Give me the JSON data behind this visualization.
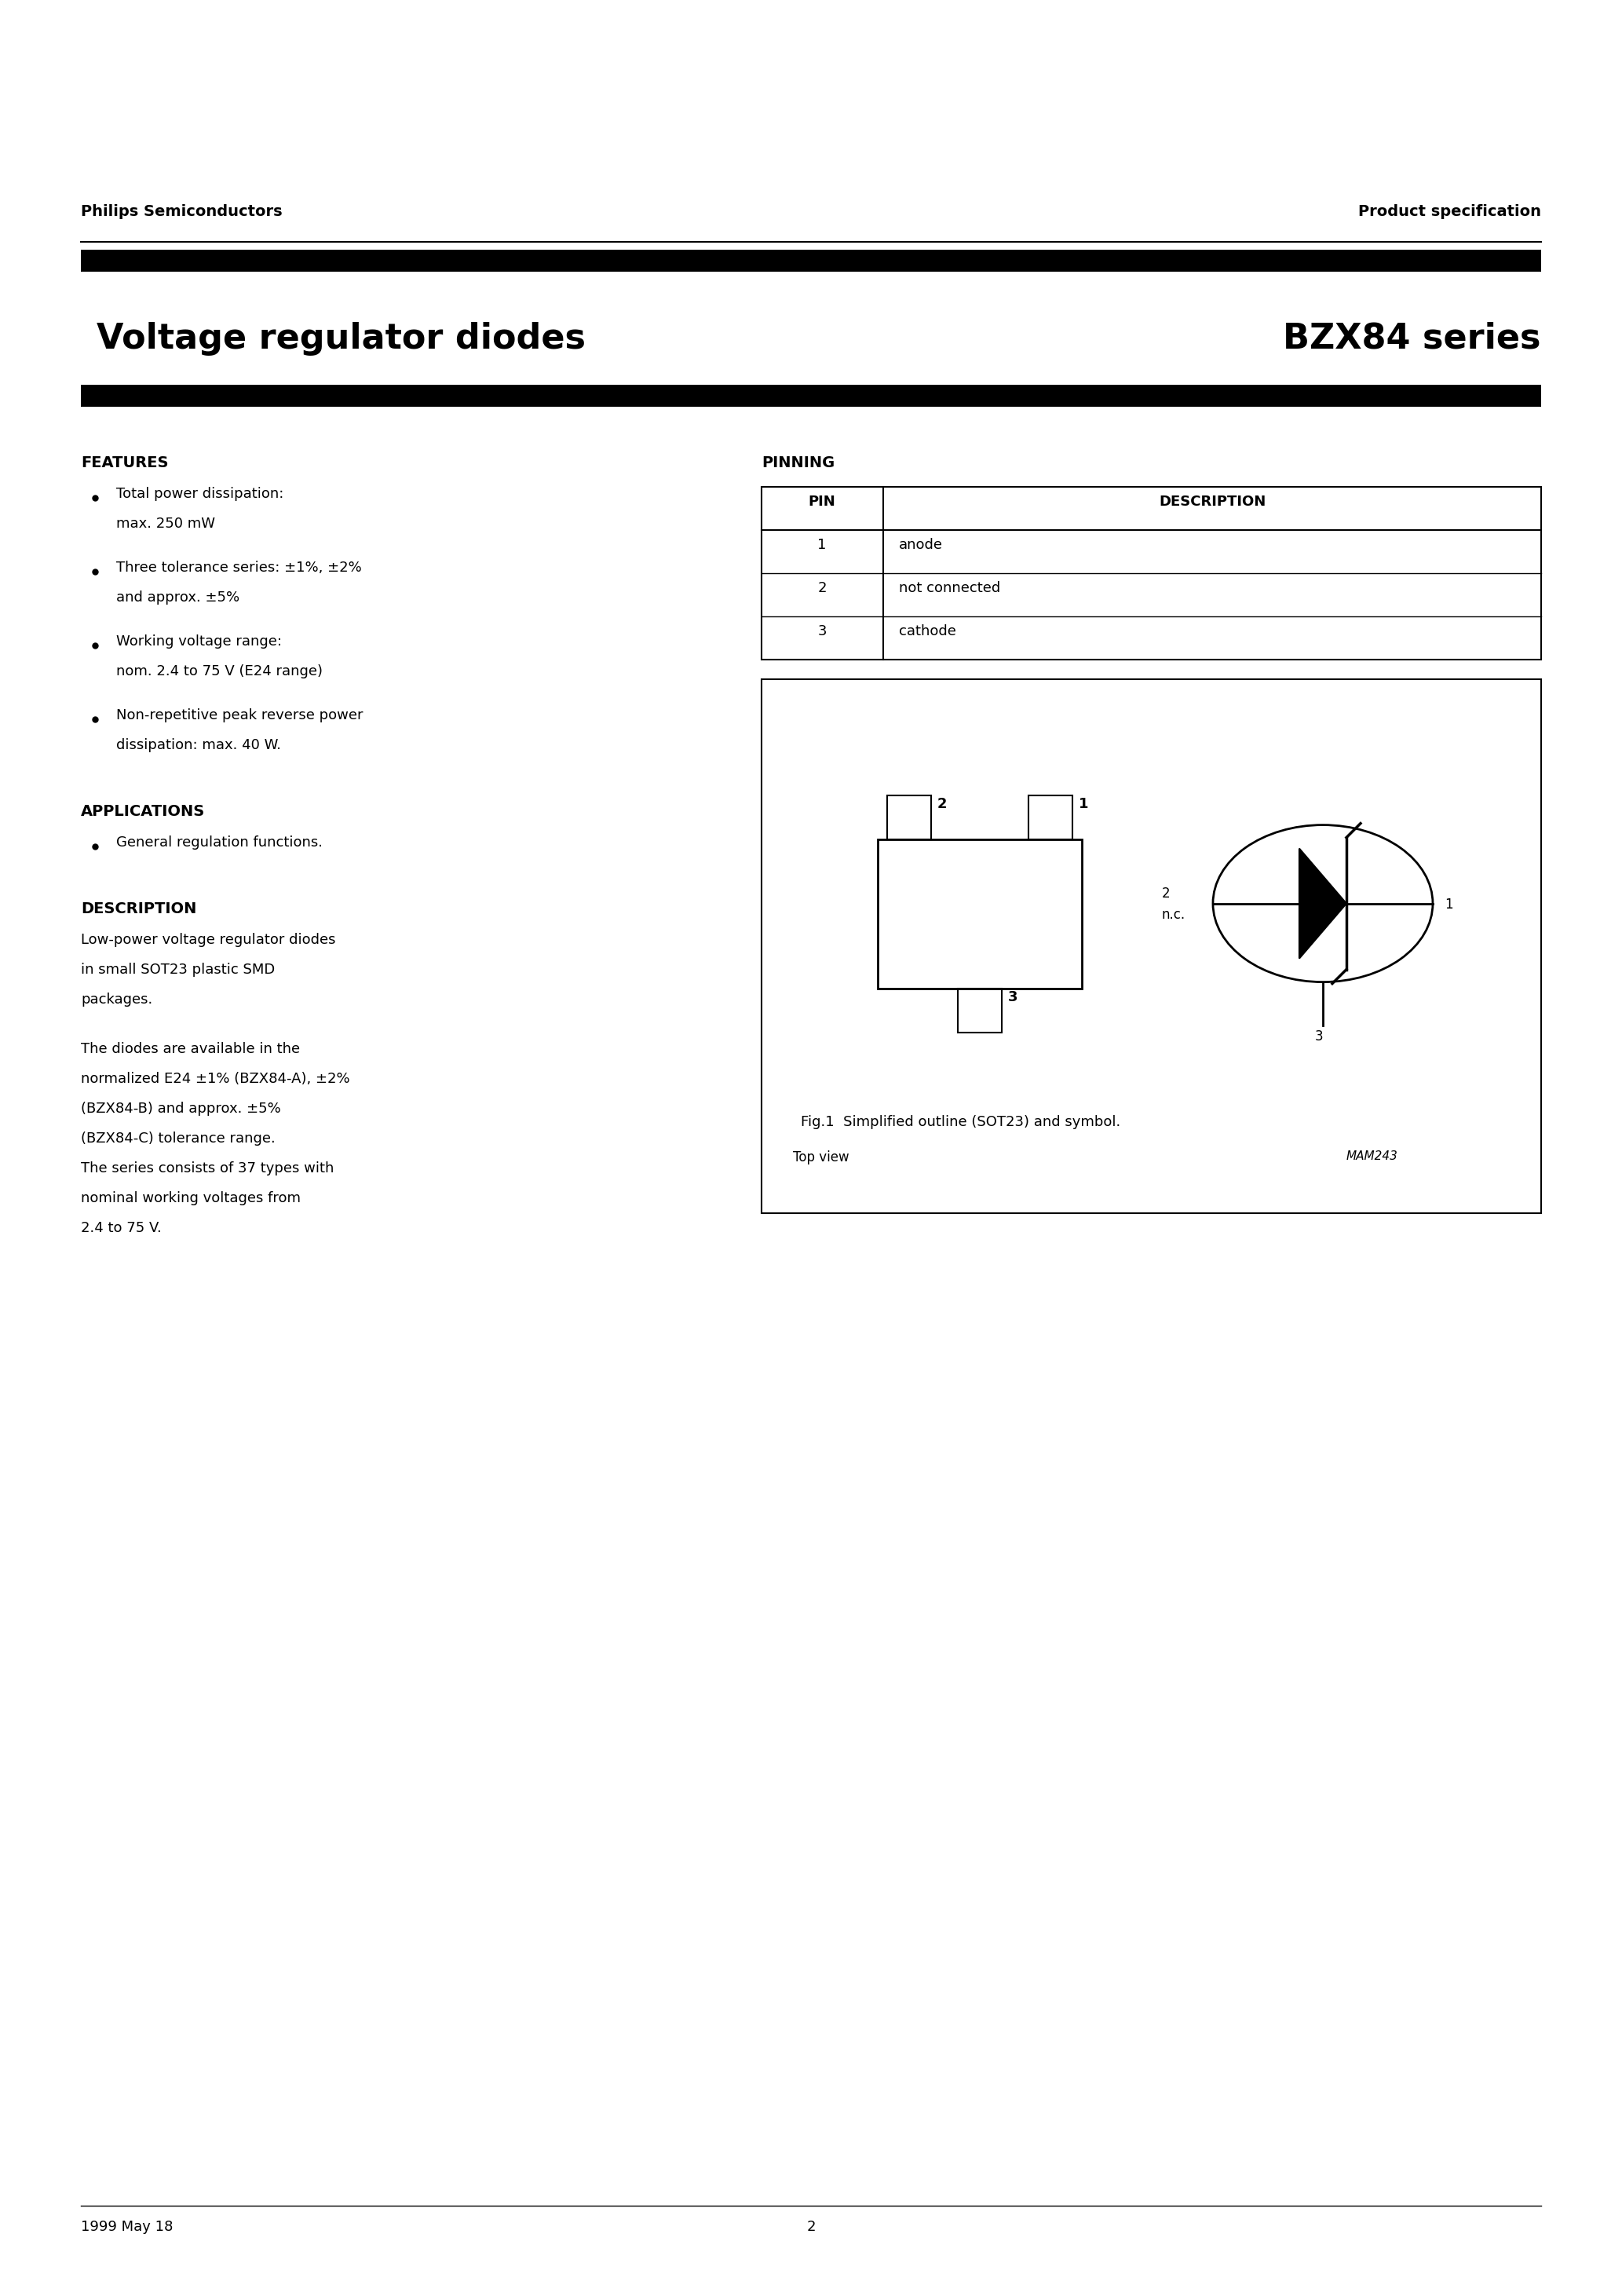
{
  "page_title_left": "Voltage regulator diodes",
  "page_title_right": "BZX84 series",
  "header_left": "Philips Semiconductors",
  "header_right": "Product specification",
  "footer_left": "1999 May 18",
  "footer_center": "2",
  "features_title": "FEATURES",
  "features_bullets": [
    "Total power dissipation:\nmax. 250 mW",
    "Three tolerance series: ±1%, ±2%\nand approx. ±5%",
    "Working voltage range:\nnom. 2.4 to 75 V (E24 range)",
    "Non-repetitive peak reverse power\ndissipation: max. 40 W."
  ],
  "applications_title": "APPLICATIONS",
  "applications_bullets": [
    "General regulation functions."
  ],
  "description_title": "DESCRIPTION",
  "description_text1": "Low-power voltage regulator diodes\nin small SOT23 plastic SMD\npackages.",
  "description_text2": "The diodes are available in the\nnormalized E24 ±1% (BZX84-A), ±2%\n(BZX84-B) and approx. ±5%\n(BZX84-C) tolerance range.\nThe series consists of 37 types with\nnominal working voltages from\n2.4 to 75 V.",
  "pinning_title": "PINNING",
  "pin_table_headers": [
    "PIN",
    "DESCRIPTION"
  ],
  "pin_table_rows": [
    [
      "1",
      "anode"
    ],
    [
      "2",
      "not connected"
    ],
    [
      "3",
      "cathode"
    ]
  ],
  "fig_caption": "Fig.1  Simplified outline (SOT23) and symbol.",
  "fig_label_mam": "MAM243",
  "fig_top_view": "Top view",
  "background_color": "#ffffff",
  "text_color": "#000000",
  "bar_color": "#000000"
}
